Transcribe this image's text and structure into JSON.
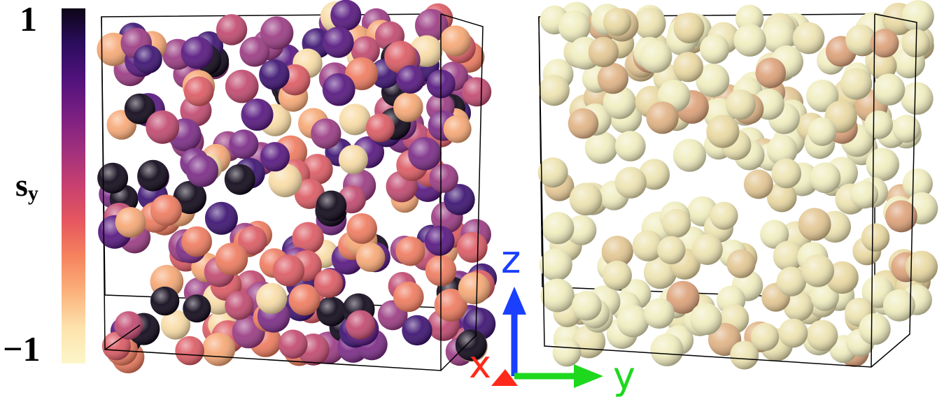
{
  "colorbar": {
    "label_main": "s",
    "label_sub": "y",
    "max_label": "1",
    "min_label": "−1",
    "colors": [
      "#0d0517",
      "#2b0d5e",
      "#51127c",
      "#7a1f82",
      "#a1307d",
      "#c8406f",
      "#e6575f",
      "#f6845e",
      "#fbb27c",
      "#fde3ad",
      "#fcf6c8"
    ]
  },
  "axes": {
    "z_label": "z",
    "x_label": "x",
    "y_label": "y",
    "z_color": "#1a3fff",
    "y_color": "#1ed81e",
    "x_color": "#ff2a1a"
  },
  "panels": [
    {
      "name": "left-panel",
      "palette": [
        "#0d0517",
        "#3a1070",
        "#55157e",
        "#7a2a85",
        "#9a3a82",
        "#c0486f",
        "#dc5a63",
        "#ee7a5e",
        "#f6a774",
        "#f8dba4"
      ]
    },
    {
      "name": "right-panel",
      "palette": [
        "#f0edbe",
        "#ede3b0",
        "#e9d8a0",
        "#e3c692",
        "#e0b283",
        "#dca077"
      ]
    }
  ]
}
